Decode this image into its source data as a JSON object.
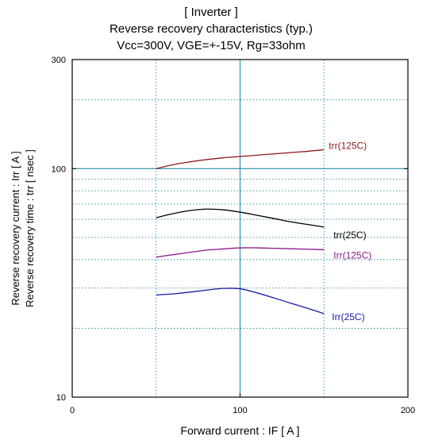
{
  "chart_data": {
    "type": "line",
    "title_lines": [
      "[ Inverter ]",
      "Reverse recovery characteristics  (typ.)",
      "Vcc=300V, VGE=+-15V, Rg=33ohm"
    ],
    "xlabel": "Forward current  :  IF  [ A ]",
    "ylabel_lines": [
      "Reverse recovery current  :  Irr  [ A ]",
      "Reverse recovery time  :  trr  [ nsec ]"
    ],
    "x_scale": "linear",
    "y_scale": "log",
    "xlim": [
      0,
      200
    ],
    "ylim": [
      10,
      300
    ],
    "x_ticks": [
      "0",
      "100",
      "200"
    ],
    "y_ticks": [
      "10",
      "100",
      "300"
    ],
    "x_grid": [
      50,
      100,
      150
    ],
    "y_grid": [
      20,
      30,
      40,
      50,
      60,
      70,
      80,
      90,
      100,
      200
    ],
    "grid": true,
    "series": [
      {
        "name": "trr(125C)",
        "color": "#8b1a1a",
        "x": [
          50,
          60,
          70,
          80,
          90,
          100,
          110,
          120,
          130,
          140,
          150
        ],
        "y": [
          100,
          104,
          107,
          109.5,
          111.5,
          113,
          114.5,
          116,
          117.5,
          119,
          121
        ]
      },
      {
        "name": "trr(25C)",
        "color": "#000000",
        "x": [
          50,
          60,
          70,
          80,
          90,
          100,
          110,
          120,
          130,
          140,
          150
        ],
        "y": [
          61,
          63.5,
          65.5,
          66.5,
          66,
          64.5,
          62.5,
          60.5,
          58.5,
          57,
          55.5
        ]
      },
      {
        "name": "Irr(125C)",
        "color": "#8b1a8b",
        "x": [
          50,
          60,
          70,
          80,
          90,
          100,
          110,
          120,
          130,
          140,
          150
        ],
        "y": [
          41,
          42,
          43,
          44,
          44.5,
          45,
          45,
          44.8,
          44.6,
          44.4,
          44.2
        ]
      },
      {
        "name": "Irr(25C)",
        "color": "#1a1aa6",
        "x": [
          50,
          60,
          70,
          80,
          90,
          100,
          110,
          120,
          130,
          140,
          150
        ],
        "y": [
          28,
          28.3,
          28.8,
          29.4,
          29.9,
          29.8,
          28.6,
          27.2,
          25.8,
          24.5,
          23.2
        ]
      }
    ],
    "grid_color": "#2a8aa8"
  }
}
